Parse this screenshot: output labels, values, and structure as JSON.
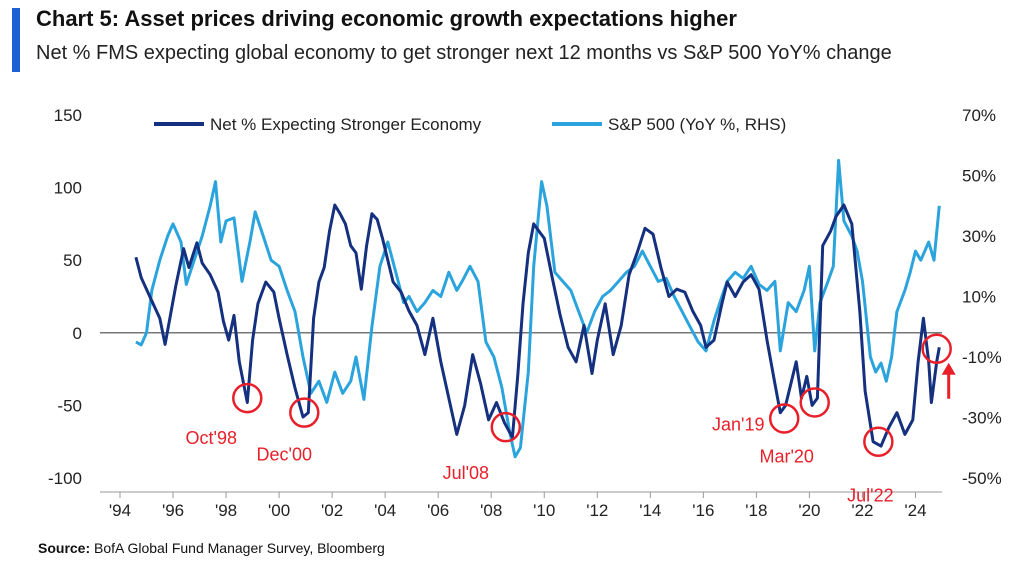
{
  "header": {
    "title": "Chart 5: Asset prices driving economic growth expectations higher",
    "subtitle": "Net % FMS expecting global economy to get stronger next 12 months vs S&P 500 YoY% change"
  },
  "source": {
    "label": "Source:",
    "text": " BofA Global Fund Manager Survey, Bloomberg"
  },
  "colors": {
    "accent": "#1f5fd6",
    "series_dark": "#14307f",
    "series_light": "#2ba4dd",
    "annotation": "#e8202a",
    "zero_line": "#777777"
  },
  "chart_data": {
    "type": "line",
    "x_tick_labels": [
      "'94",
      "'96",
      "'98",
      "'00",
      "'02",
      "'04",
      "'06",
      "'08",
      "'10",
      "'12",
      "'14",
      "'16",
      "'18",
      "'20",
      "'22",
      "'24"
    ],
    "x_tick_years": [
      1994,
      1996,
      1998,
      2000,
      2002,
      2004,
      2006,
      2008,
      2010,
      2012,
      2014,
      2016,
      2018,
      2020,
      2022,
      2024
    ],
    "xlim": [
      1994,
      2025
    ],
    "y_left": {
      "ticks": [
        150,
        100,
        50,
        0,
        -50,
        -100
      ],
      "labels": [
        "150",
        "100",
        "50",
        "0",
        "-50",
        "-100"
      ],
      "ylim": [
        -100,
        150
      ]
    },
    "y_right": {
      "ticks": [
        70,
        50,
        30,
        10,
        -10,
        -30,
        -50
      ],
      "labels": [
        "70%",
        "50%",
        "30%",
        "10%",
        "-10%",
        "-30%",
        "-50%"
      ],
      "ylim": [
        -50,
        70
      ]
    },
    "series": [
      {
        "name": "Net % Expecting Stronger Economy",
        "axis": "left",
        "points": [
          [
            1994.6,
            52
          ],
          [
            1994.8,
            38
          ],
          [
            1995.0,
            30
          ],
          [
            1995.3,
            18
          ],
          [
            1995.5,
            10
          ],
          [
            1995.7,
            -8
          ],
          [
            1995.9,
            12
          ],
          [
            1996.1,
            32
          ],
          [
            1996.4,
            58
          ],
          [
            1996.6,
            45
          ],
          [
            1996.9,
            62
          ],
          [
            1997.1,
            48
          ],
          [
            1997.4,
            40
          ],
          [
            1997.7,
            28
          ],
          [
            1997.9,
            8
          ],
          [
            1998.1,
            -5
          ],
          [
            1998.3,
            12
          ],
          [
            1998.5,
            -20
          ],
          [
            1998.8,
            -48
          ],
          [
            1999.0,
            -5
          ],
          [
            1999.2,
            20
          ],
          [
            1999.5,
            35
          ],
          [
            1999.8,
            28
          ],
          [
            2000.0,
            10
          ],
          [
            2000.3,
            -15
          ],
          [
            2000.6,
            -38
          ],
          [
            2000.9,
            -58
          ],
          [
            2001.1,
            -55
          ],
          [
            2001.3,
            10
          ],
          [
            2001.5,
            35
          ],
          [
            2001.7,
            45
          ],
          [
            2001.9,
            70
          ],
          [
            2002.1,
            88
          ],
          [
            2002.3,
            82
          ],
          [
            2002.5,
            75
          ],
          [
            2002.7,
            60
          ],
          [
            2002.9,
            55
          ],
          [
            2003.1,
            30
          ],
          [
            2003.3,
            60
          ],
          [
            2003.5,
            82
          ],
          [
            2003.7,
            78
          ],
          [
            2003.9,
            65
          ],
          [
            2004.1,
            50
          ],
          [
            2004.3,
            35
          ],
          [
            2004.6,
            28
          ],
          [
            2004.9,
            15
          ],
          [
            2005.2,
            5
          ],
          [
            2005.5,
            -15
          ],
          [
            2005.8,
            10
          ],
          [
            2006.1,
            -20
          ],
          [
            2006.4,
            -45
          ],
          [
            2006.7,
            -70
          ],
          [
            2007.0,
            -50
          ],
          [
            2007.3,
            -15
          ],
          [
            2007.6,
            -35
          ],
          [
            2007.9,
            -60
          ],
          [
            2008.2,
            -48
          ],
          [
            2008.5,
            -62
          ],
          [
            2008.8,
            -72
          ],
          [
            2009.0,
            -30
          ],
          [
            2009.2,
            20
          ],
          [
            2009.4,
            55
          ],
          [
            2009.6,
            75
          ],
          [
            2009.8,
            70
          ],
          [
            2010.0,
            65
          ],
          [
            2010.3,
            38
          ],
          [
            2010.6,
            12
          ],
          [
            2010.9,
            -10
          ],
          [
            2011.2,
            -20
          ],
          [
            2011.5,
            5
          ],
          [
            2011.8,
            -28
          ],
          [
            2012.0,
            -5
          ],
          [
            2012.3,
            20
          ],
          [
            2012.6,
            -15
          ],
          [
            2012.9,
            5
          ],
          [
            2013.2,
            40
          ],
          [
            2013.5,
            55
          ],
          [
            2013.8,
            72
          ],
          [
            2014.1,
            68
          ],
          [
            2014.4,
            45
          ],
          [
            2014.7,
            25
          ],
          [
            2015.0,
            30
          ],
          [
            2015.3,
            28
          ],
          [
            2015.6,
            15
          ],
          [
            2015.9,
            5
          ],
          [
            2016.1,
            -10
          ],
          [
            2016.4,
            -5
          ],
          [
            2016.7,
            20
          ],
          [
            2016.9,
            35
          ],
          [
            2017.2,
            25
          ],
          [
            2017.5,
            35
          ],
          [
            2017.8,
            40
          ],
          [
            2018.1,
            30
          ],
          [
            2018.4,
            -5
          ],
          [
            2018.7,
            -35
          ],
          [
            2018.9,
            -55
          ],
          [
            2019.1,
            -50
          ],
          [
            2019.3,
            -35
          ],
          [
            2019.5,
            -20
          ],
          [
            2019.7,
            -45
          ],
          [
            2019.9,
            -30
          ],
          [
            2020.1,
            -50
          ],
          [
            2020.3,
            -45
          ],
          [
            2020.5,
            60
          ],
          [
            2020.8,
            70
          ],
          [
            2021.0,
            80
          ],
          [
            2021.3,
            88
          ],
          [
            2021.6,
            75
          ],
          [
            2021.9,
            15
          ],
          [
            2022.1,
            -40
          ],
          [
            2022.4,
            -75
          ],
          [
            2022.7,
            -78
          ],
          [
            2023.0,
            -65
          ],
          [
            2023.3,
            -55
          ],
          [
            2023.6,
            -70
          ],
          [
            2023.9,
            -60
          ],
          [
            2024.1,
            -20
          ],
          [
            2024.3,
            10
          ],
          [
            2024.5,
            -20
          ],
          [
            2024.6,
            -48
          ],
          [
            2024.8,
            -20
          ],
          [
            2024.9,
            -10
          ]
        ]
      },
      {
        "name": "S&P 500 (YoY %, RHS)",
        "axis": "right",
        "points": [
          [
            1994.6,
            -5
          ],
          [
            1994.8,
            -6
          ],
          [
            1995.0,
            -2
          ],
          [
            1995.2,
            12
          ],
          [
            1995.5,
            22
          ],
          [
            1995.8,
            30
          ],
          [
            1996.0,
            34
          ],
          [
            1996.3,
            28
          ],
          [
            1996.5,
            14
          ],
          [
            1996.8,
            22
          ],
          [
            1997.1,
            30
          ],
          [
            1997.4,
            40
          ],
          [
            1997.6,
            48
          ],
          [
            1997.8,
            28
          ],
          [
            1998.0,
            35
          ],
          [
            1998.3,
            36
          ],
          [
            1998.6,
            15
          ],
          [
            1998.9,
            28
          ],
          [
            1999.1,
            38
          ],
          [
            1999.4,
            30
          ],
          [
            1999.7,
            22
          ],
          [
            2000.0,
            20
          ],
          [
            2000.3,
            12
          ],
          [
            2000.6,
            5
          ],
          [
            2000.9,
            -10
          ],
          [
            2001.2,
            -22
          ],
          [
            2001.5,
            -18
          ],
          [
            2001.8,
            -25
          ],
          [
            2002.1,
            -15
          ],
          [
            2002.4,
            -22
          ],
          [
            2002.7,
            -18
          ],
          [
            2002.9,
            -10
          ],
          [
            2003.2,
            -24
          ],
          [
            2003.5,
            0
          ],
          [
            2003.8,
            20
          ],
          [
            2004.1,
            28
          ],
          [
            2004.4,
            18
          ],
          [
            2004.7,
            8
          ],
          [
            2004.9,
            10
          ],
          [
            2005.2,
            5
          ],
          [
            2005.5,
            8
          ],
          [
            2005.8,
            12
          ],
          [
            2006.1,
            10
          ],
          [
            2006.4,
            18
          ],
          [
            2006.7,
            12
          ],
          [
            2006.9,
            15
          ],
          [
            2007.2,
            20
          ],
          [
            2007.5,
            15
          ],
          [
            2007.8,
            -5
          ],
          [
            2008.1,
            -10
          ],
          [
            2008.4,
            -20
          ],
          [
            2008.7,
            -35
          ],
          [
            2008.9,
            -43
          ],
          [
            2009.1,
            -40
          ],
          [
            2009.4,
            -15
          ],
          [
            2009.6,
            20
          ],
          [
            2009.9,
            48
          ],
          [
            2010.1,
            40
          ],
          [
            2010.4,
            18
          ],
          [
            2010.7,
            15
          ],
          [
            2011.0,
            12
          ],
          [
            2011.3,
            5
          ],
          [
            2011.6,
            -2
          ],
          [
            2011.9,
            5
          ],
          [
            2012.2,
            10
          ],
          [
            2012.5,
            12
          ],
          [
            2012.8,
            15
          ],
          [
            2013.1,
            18
          ],
          [
            2013.4,
            20
          ],
          [
            2013.7,
            25
          ],
          [
            2014.0,
            20
          ],
          [
            2014.3,
            15
          ],
          [
            2014.6,
            16
          ],
          [
            2014.9,
            10
          ],
          [
            2015.2,
            5
          ],
          [
            2015.5,
            0
          ],
          [
            2015.8,
            -5
          ],
          [
            2016.1,
            -8
          ],
          [
            2016.4,
            2
          ],
          [
            2016.7,
            10
          ],
          [
            2016.9,
            15
          ],
          [
            2017.2,
            18
          ],
          [
            2017.5,
            16
          ],
          [
            2017.8,
            20
          ],
          [
            2018.1,
            14
          ],
          [
            2018.4,
            12
          ],
          [
            2018.7,
            15
          ],
          [
            2018.9,
            -8
          ],
          [
            2019.2,
            8
          ],
          [
            2019.5,
            5
          ],
          [
            2019.8,
            12
          ],
          [
            2020.0,
            20
          ],
          [
            2020.2,
            -8
          ],
          [
            2020.4,
            8
          ],
          [
            2020.7,
            15
          ],
          [
            2020.9,
            20
          ],
          [
            2021.1,
            55
          ],
          [
            2021.3,
            35
          ],
          [
            2021.6,
            30
          ],
          [
            2021.8,
            25
          ],
          [
            2022.0,
            15
          ],
          [
            2022.3,
            -10
          ],
          [
            2022.5,
            -15
          ],
          [
            2022.7,
            -12
          ],
          [
            2022.9,
            -18
          ],
          [
            2023.1,
            -10
          ],
          [
            2023.3,
            5
          ],
          [
            2023.6,
            12
          ],
          [
            2023.8,
            18
          ],
          [
            2024.0,
            25
          ],
          [
            2024.2,
            22
          ],
          [
            2024.5,
            28
          ],
          [
            2024.7,
            22
          ],
          [
            2024.9,
            40
          ]
        ]
      }
    ],
    "annotations": [
      {
        "label": "Oct'98",
        "x": 1998.8,
        "y": -45
      },
      {
        "label": "Dec'00",
        "x": 2000.95,
        "y": -55
      },
      {
        "label": "Jul'08",
        "x": 2008.55,
        "y": -65
      },
      {
        "label": "Jan'19",
        "x": 2019.05,
        "y": -59
      },
      {
        "label": "Mar'20",
        "x": 2020.2,
        "y": -48
      },
      {
        "label": "Jul'22",
        "x": 2022.6,
        "y": -75
      },
      {
        "label": "",
        "x": 2024.8,
        "y": -11
      }
    ]
  }
}
